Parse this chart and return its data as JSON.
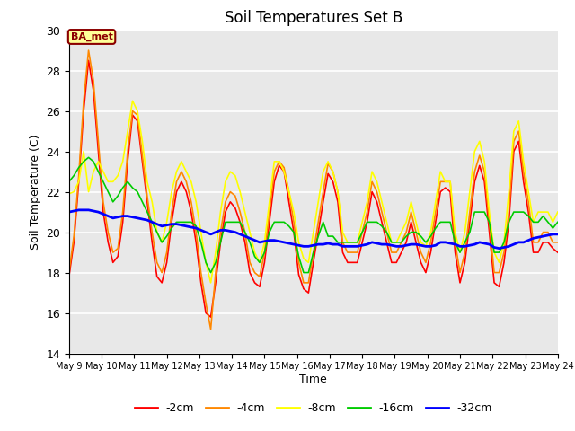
{
  "title": "Soil Temperatures Set B",
  "xlabel": "Time",
  "ylabel": "Soil Temperature (C)",
  "ylim": [
    14,
    30
  ],
  "yticks": [
    14,
    16,
    18,
    20,
    22,
    24,
    26,
    28,
    30
  ],
  "xlim": [
    9.0,
    24.0
  ],
  "background_color": "#e8e8e8",
  "fig_bg": "#ffffff",
  "annotation_text": "BA_met",
  "annotation_color": "#8B0000",
  "annotation_bg": "#ffff99",
  "series_colors": [
    "#ff0000",
    "#ff8800",
    "#ffff00",
    "#00cc00",
    "#0000ff"
  ],
  "series_labels": [
    "-2cm",
    "-4cm",
    "-8cm",
    "-16cm",
    "-32cm"
  ],
  "series_lw": [
    1.2,
    1.2,
    1.2,
    1.2,
    2.0
  ],
  "neg2cm_x": [
    9.0,
    9.15,
    9.3,
    9.45,
    9.6,
    9.75,
    9.9,
    10.05,
    10.2,
    10.35,
    10.5,
    10.65,
    10.8,
    10.95,
    11.1,
    11.25,
    11.4,
    11.55,
    11.7,
    11.85,
    12.0,
    12.15,
    12.3,
    12.45,
    12.6,
    12.75,
    12.9,
    13.05,
    13.2,
    13.35,
    13.5,
    13.65,
    13.8,
    13.95,
    14.1,
    14.25,
    14.4,
    14.55,
    14.7,
    14.85,
    15.0,
    15.15,
    15.3,
    15.45,
    15.6,
    15.75,
    15.9,
    16.05,
    16.2,
    16.35,
    16.5,
    16.65,
    16.8,
    16.95,
    17.1,
    17.25,
    17.4,
    17.55,
    17.7,
    17.85,
    18.0,
    18.15,
    18.3,
    18.45,
    18.6,
    18.75,
    18.9,
    19.05,
    19.2,
    19.35,
    19.5,
    19.65,
    19.8,
    19.95,
    20.1,
    20.25,
    20.4,
    20.55,
    20.7,
    20.85,
    21.0,
    21.15,
    21.3,
    21.45,
    21.6,
    21.75,
    21.9,
    22.05,
    22.2,
    22.35,
    22.5,
    22.65,
    22.8,
    22.95,
    23.1,
    23.25,
    23.4,
    23.55,
    23.7,
    23.85,
    24.0
  ],
  "neg2cm_y": [
    17.8,
    19.5,
    22.5,
    26.0,
    28.5,
    27.0,
    24.0,
    21.0,
    19.5,
    18.5,
    18.8,
    20.5,
    23.5,
    25.8,
    25.5,
    23.5,
    21.5,
    19.5,
    17.8,
    17.5,
    18.5,
    20.5,
    22.0,
    22.5,
    22.0,
    21.0,
    19.5,
    17.5,
    16.0,
    15.8,
    17.5,
    19.5,
    21.0,
    21.5,
    21.2,
    20.5,
    19.5,
    18.0,
    17.5,
    17.3,
    18.5,
    20.5,
    22.5,
    23.3,
    23.0,
    21.5,
    20.0,
    17.9,
    17.2,
    17.0,
    18.5,
    20.0,
    21.5,
    22.9,
    22.5,
    21.5,
    19.0,
    18.5,
    18.5,
    18.5,
    19.5,
    20.5,
    22.0,
    21.5,
    20.5,
    19.5,
    18.5,
    18.5,
    19.0,
    19.5,
    20.5,
    19.5,
    18.5,
    18.0,
    19.0,
    20.5,
    22.0,
    22.2,
    22.0,
    19.0,
    17.5,
    18.5,
    20.5,
    22.5,
    23.3,
    22.5,
    20.0,
    17.5,
    17.3,
    18.5,
    20.5,
    24.0,
    24.5,
    22.5,
    21.0,
    19.0,
    19.0,
    19.5,
    19.5,
    19.2,
    19.0
  ],
  "neg4cm_y": [
    18.0,
    19.8,
    22.8,
    26.5,
    29.0,
    27.5,
    24.5,
    21.5,
    20.0,
    19.0,
    19.2,
    21.0,
    24.0,
    26.0,
    25.8,
    23.8,
    21.8,
    20.0,
    18.5,
    18.0,
    19.0,
    21.0,
    22.5,
    23.0,
    22.5,
    21.5,
    20.0,
    18.0,
    16.5,
    15.2,
    18.0,
    20.0,
    21.5,
    22.0,
    21.8,
    21.0,
    20.0,
    18.5,
    18.0,
    17.8,
    19.0,
    21.0,
    23.0,
    23.5,
    23.2,
    22.0,
    20.5,
    18.5,
    17.5,
    17.5,
    19.0,
    20.5,
    22.0,
    23.4,
    23.0,
    22.0,
    19.5,
    19.0,
    19.0,
    19.0,
    20.0,
    21.0,
    22.5,
    22.0,
    21.0,
    20.0,
    19.0,
    19.0,
    19.5,
    20.0,
    21.0,
    20.0,
    19.0,
    18.5,
    19.5,
    21.0,
    22.5,
    22.5,
    22.5,
    19.5,
    18.0,
    19.0,
    21.0,
    23.0,
    23.8,
    23.0,
    20.5,
    18.0,
    18.0,
    19.0,
    21.0,
    24.5,
    25.0,
    23.0,
    21.5,
    19.5,
    19.5,
    20.0,
    20.0,
    19.5,
    19.5
  ],
  "neg8cm_y": [
    21.9,
    22.0,
    22.5,
    24.0,
    22.0,
    23.0,
    23.5,
    23.0,
    22.5,
    22.5,
    22.8,
    23.5,
    25.0,
    26.5,
    26.0,
    24.5,
    22.5,
    21.5,
    20.0,
    19.5,
    20.5,
    22.0,
    23.0,
    23.5,
    23.0,
    22.5,
    21.5,
    20.0,
    18.5,
    17.5,
    19.0,
    21.0,
    22.5,
    23.0,
    22.8,
    22.0,
    21.0,
    20.0,
    19.0,
    18.5,
    19.5,
    21.5,
    23.5,
    23.5,
    23.0,
    22.0,
    21.0,
    19.5,
    18.7,
    18.5,
    20.0,
    21.5,
    23.0,
    23.5,
    23.0,
    22.0,
    20.0,
    19.5,
    19.5,
    19.5,
    20.5,
    21.5,
    23.0,
    22.5,
    21.5,
    20.5,
    19.5,
    19.5,
    20.0,
    20.5,
    21.5,
    20.5,
    19.5,
    19.3,
    20.0,
    21.5,
    23.0,
    22.5,
    22.5,
    20.0,
    19.0,
    20.0,
    22.0,
    24.0,
    24.5,
    23.5,
    21.0,
    19.0,
    18.5,
    19.5,
    22.0,
    25.0,
    25.5,
    23.5,
    22.0,
    20.5,
    21.0,
    21.0,
    21.0,
    20.5,
    21.0
  ],
  "neg16cm_y": [
    22.5,
    22.8,
    23.2,
    23.5,
    23.7,
    23.5,
    23.0,
    22.5,
    22.0,
    21.5,
    21.8,
    22.2,
    22.5,
    22.2,
    22.0,
    21.5,
    21.0,
    20.5,
    20.0,
    19.5,
    19.8,
    20.2,
    20.5,
    20.5,
    20.5,
    20.5,
    20.3,
    19.5,
    18.5,
    18.0,
    18.5,
    19.5,
    20.5,
    20.5,
    20.5,
    20.5,
    20.0,
    19.5,
    18.8,
    18.5,
    19.0,
    20.0,
    20.5,
    20.5,
    20.5,
    20.3,
    20.0,
    18.8,
    18.0,
    18.0,
    19.0,
    19.8,
    20.5,
    19.8,
    19.8,
    19.5,
    19.5,
    19.5,
    19.5,
    19.5,
    20.0,
    20.5,
    20.5,
    20.5,
    20.3,
    20.0,
    19.5,
    19.5,
    19.5,
    19.8,
    20.0,
    20.0,
    19.8,
    19.5,
    19.8,
    20.2,
    20.5,
    20.5,
    20.5,
    19.5,
    19.0,
    19.5,
    20.0,
    21.0,
    21.0,
    21.0,
    20.5,
    19.0,
    19.0,
    19.5,
    20.5,
    21.0,
    21.0,
    21.0,
    20.8,
    20.5,
    20.5,
    20.8,
    20.5,
    20.2,
    20.5
  ],
  "neg32cm_y": [
    21.0,
    21.05,
    21.1,
    21.1,
    21.1,
    21.05,
    21.0,
    20.9,
    20.8,
    20.7,
    20.75,
    20.8,
    20.8,
    20.75,
    20.7,
    20.65,
    20.6,
    20.5,
    20.4,
    20.3,
    20.35,
    20.4,
    20.4,
    20.35,
    20.3,
    20.25,
    20.2,
    20.1,
    20.0,
    19.9,
    20.0,
    20.1,
    20.1,
    20.05,
    20.0,
    19.9,
    19.8,
    19.7,
    19.6,
    19.5,
    19.55,
    19.6,
    19.6,
    19.55,
    19.5,
    19.45,
    19.4,
    19.35,
    19.3,
    19.3,
    19.35,
    19.4,
    19.4,
    19.45,
    19.4,
    19.4,
    19.3,
    19.3,
    19.3,
    19.3,
    19.35,
    19.4,
    19.5,
    19.45,
    19.4,
    19.4,
    19.35,
    19.3,
    19.3,
    19.35,
    19.4,
    19.4,
    19.35,
    19.3,
    19.3,
    19.35,
    19.5,
    19.5,
    19.45,
    19.4,
    19.3,
    19.3,
    19.35,
    19.4,
    19.5,
    19.45,
    19.4,
    19.25,
    19.2,
    19.25,
    19.3,
    19.4,
    19.5,
    19.5,
    19.6,
    19.7,
    19.75,
    19.8,
    19.85,
    19.9,
    19.9
  ]
}
